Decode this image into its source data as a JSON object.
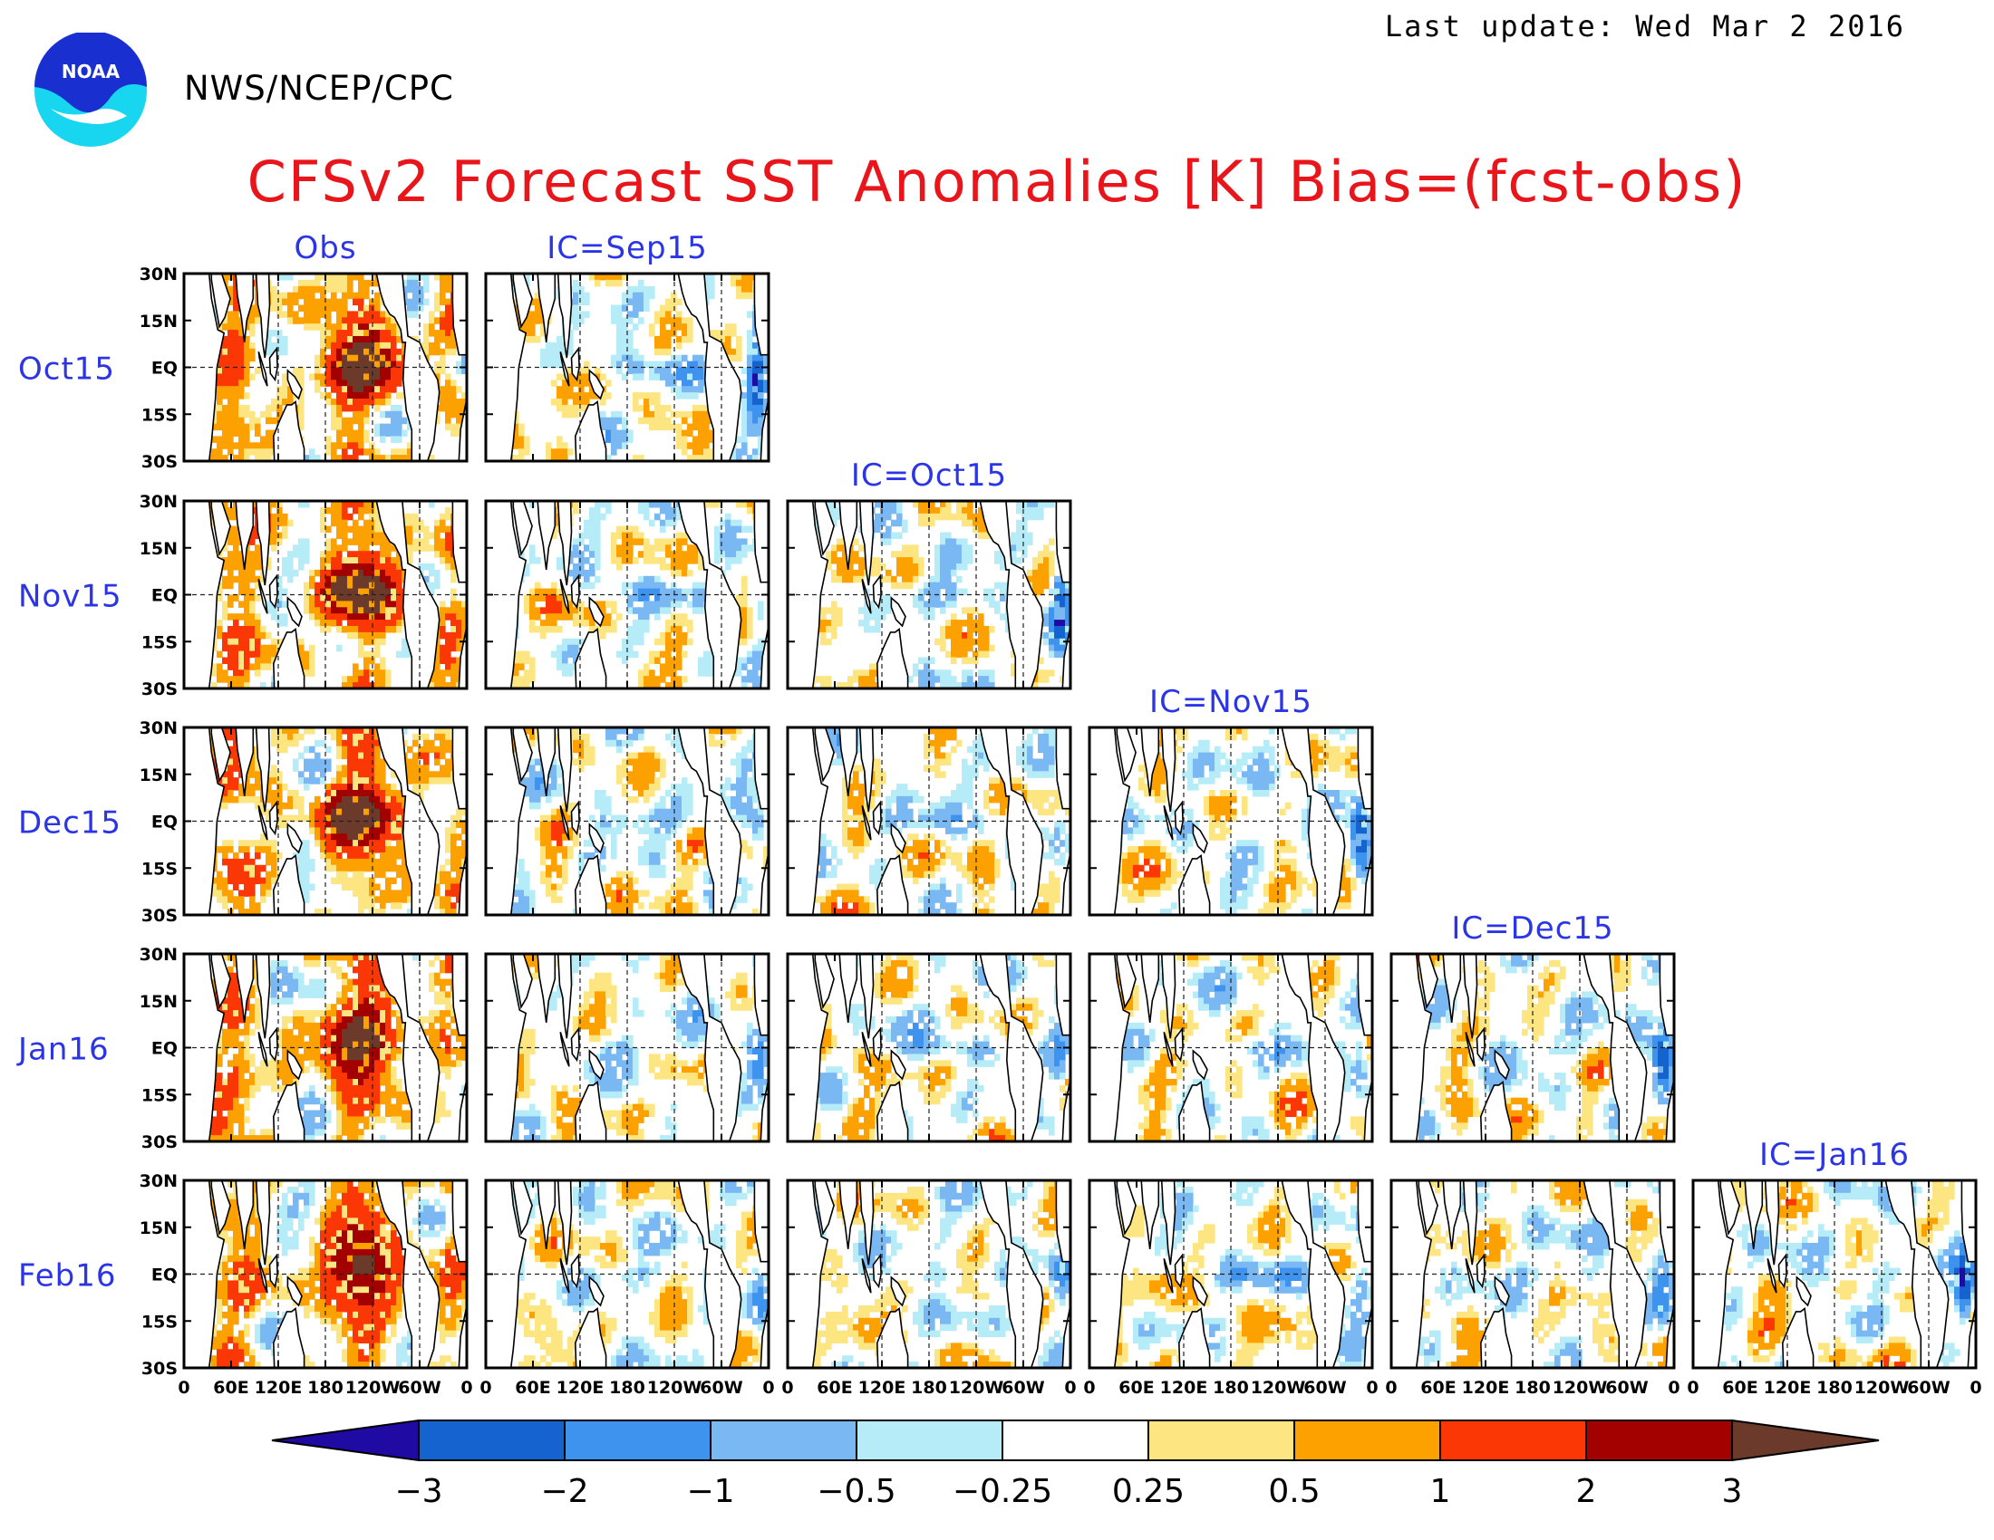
{
  "header": {
    "agency": "NWS/NCEP/CPC",
    "last_update": "Last update: Wed Mar 2 2016",
    "logo_text": "NOAA"
  },
  "chart_data": {
    "type": "heatmap",
    "title": "CFSv2 Forecast SST Anomalies [K] Bias=(fcst-obs)",
    "unit": "K",
    "rows": [
      "Oct15",
      "Nov15",
      "Dec15",
      "Jan16",
      "Feb16"
    ],
    "columns": [
      "Obs",
      "IC=Sep15",
      "IC=Oct15",
      "IC=Nov15",
      "IC=Dec15",
      "IC=Jan16"
    ],
    "panels_per_row": [
      2,
      3,
      4,
      5,
      6
    ],
    "lat_ticks": [
      "30N",
      "15N",
      "EQ",
      "15S",
      "30S"
    ],
    "lon_ticks": [
      "0",
      "60E",
      "120E",
      "180",
      "120W",
      "60W",
      "0"
    ],
    "lat_range": [
      -30,
      30
    ],
    "lon_range": [
      0,
      360
    ],
    "colorbar": {
      "ticks": [
        "−3",
        "−2",
        "−1",
        "−0.5",
        "−0.25",
        "0.25",
        "0.5",
        "1",
        "2",
        "3"
      ],
      "colors": [
        "#1f0aa3",
        "#1563cf",
        "#3d93ee",
        "#7ab8f3",
        "#b5ecf8",
        "#ffffff",
        "#fde681",
        "#fca100",
        "#fb3805",
        "#a30000",
        "#6b3a2a"
      ]
    },
    "colors": {
      "row_labels": "#2b35e6",
      "title": "#e8151b"
    }
  }
}
